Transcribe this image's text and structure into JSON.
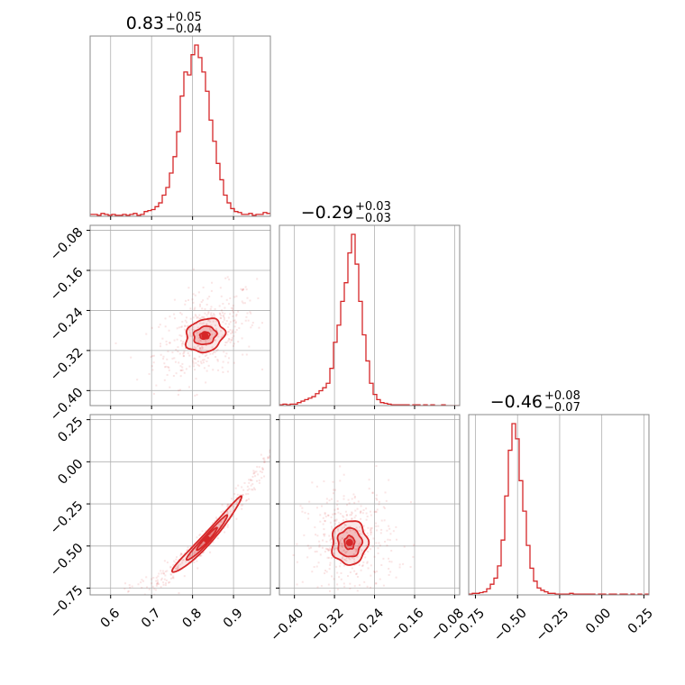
{
  "chart_data": {
    "type": "corner",
    "color": "#d62728",
    "grid": true,
    "titles": [
      {
        "value": "0.83",
        "plus": "+0.05",
        "minus": "−0.04"
      },
      {
        "value": "−0.29",
        "plus": "+0.03",
        "minus": "−0.03"
      },
      {
        "value": "−0.46",
        "plus": "+0.08",
        "minus": "−0.07"
      }
    ],
    "params": [
      {
        "range": [
          0.55,
          0.99
        ],
        "ticks": [
          0.6,
          0.7,
          0.8,
          0.9
        ],
        "tick_labels": [
          "0.6",
          "0.7",
          "0.8",
          "0.9"
        ]
      },
      {
        "range": [
          -0.43,
          -0.07
        ],
        "ticks": [
          -0.4,
          -0.32,
          -0.24,
          -0.16,
          -0.08
        ],
        "tick_labels": [
          "−0.40",
          "−0.32",
          "−0.24",
          "−0.16",
          "−0.08"
        ]
      },
      {
        "range": [
          -0.79,
          0.28
        ],
        "ticks": [
          -0.75,
          -0.5,
          -0.25,
          0.0,
          0.25
        ],
        "tick_labels": [
          "−0.75",
          "−0.50",
          "−0.25",
          "0.00",
          "0.25"
        ]
      }
    ],
    "histograms": [
      {
        "bin_start": 0.55,
        "bin_width": 0.0088,
        "counts": [
          2,
          2,
          1,
          3,
          2,
          1,
          2,
          1,
          1,
          2,
          1,
          2,
          3,
          1,
          2,
          5,
          6,
          7,
          10,
          14,
          22,
          30,
          45,
          62,
          88,
          125,
          150,
          147,
          168,
          178,
          165,
          150,
          130,
          100,
          78,
          55,
          38,
          22,
          14,
          8,
          5,
          4,
          2,
          2,
          3,
          1,
          2,
          2,
          4,
          3
        ]
      },
      {
        "bin_start": -0.43,
        "bin_width": 0.0072,
        "counts": [
          1,
          2,
          1,
          2,
          2,
          4,
          6,
          8,
          10,
          12,
          16,
          20,
          24,
          30,
          50,
          85,
          108,
          140,
          165,
          205,
          230,
          190,
          140,
          95,
          60,
          30,
          15,
          8,
          4,
          3,
          2,
          1,
          1,
          1,
          1,
          1,
          0,
          1,
          1,
          0,
          1,
          0,
          1,
          0,
          0,
          1,
          0,
          0,
          0,
          0
        ]
      },
      {
        "bin_start": -0.79,
        "bin_width": 0.0214,
        "counts": [
          1,
          2,
          2,
          3,
          4,
          8,
          14,
          22,
          38,
          72,
          130,
          190,
          225,
          205,
          150,
          110,
          65,
          35,
          18,
          9,
          6,
          4,
          2,
          2,
          1,
          1,
          1,
          1,
          2,
          1,
          1,
          1,
          1,
          1,
          1,
          0,
          1,
          1,
          0,
          1,
          1,
          0,
          1,
          1,
          0,
          1,
          0,
          1,
          0,
          1
        ]
      }
    ],
    "joints": [
      {
        "x": 0,
        "y": 1,
        "center": [
          0.83,
          -0.29
        ],
        "levels": [
          {
            "sx": 0.012,
            "sy": 0.007,
            "angle": 8
          },
          {
            "sx": 0.028,
            "sy": 0.018,
            "angle": 10
          },
          {
            "sx": 0.048,
            "sy": 0.033,
            "angle": 12
          }
        ]
      },
      {
        "x": 0,
        "y": 2,
        "center": [
          0.835,
          -0.46
        ],
        "levels": [
          {
            "sx": 0.025,
            "sy": 0.055,
            "angle": 0,
            "slope": 2.6,
            "width": 0.018
          },
          {
            "sx": 0.05,
            "sy": 0.11,
            "angle": 0,
            "slope": 2.6,
            "width": 0.03
          },
          {
            "sx": 0.085,
            "sy": 0.19,
            "angle": 0,
            "slope": 2.6,
            "width": 0.045
          }
        ]
      },
      {
        "x": 1,
        "y": 2,
        "center": [
          -0.29,
          -0.48
        ],
        "levels": [
          {
            "sx": 0.01,
            "sy": 0.04,
            "angle": 5
          },
          {
            "sx": 0.024,
            "sy": 0.085,
            "angle": 8
          },
          {
            "sx": 0.036,
            "sy": 0.13,
            "angle": 10
          }
        ]
      }
    ]
  }
}
